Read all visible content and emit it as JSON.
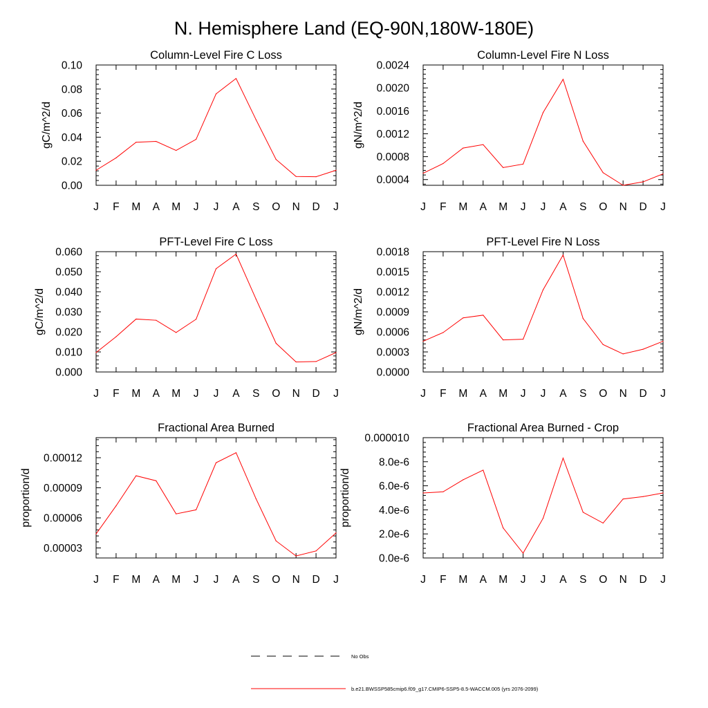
{
  "figure": {
    "title": "N. Hemisphere Land (EQ-90N,180W-180E)",
    "series_color": "#ff0000",
    "axis_color": "#000000"
  },
  "legend": {
    "obs_label": "No Obs",
    "model_label": "b.e21.BWSSP585cmip6.f09_g17.CMIP6-SSP5-8.5-WACCM.005 (yrs 2076-2099)"
  },
  "chart_data": [
    {
      "type": "line",
      "title": "Column-Level Fire C Loss",
      "xlabel": "",
      "ylabel": "gC/m^2/d",
      "categories": [
        "J",
        "F",
        "M",
        "A",
        "M",
        "J",
        "J",
        "A",
        "S",
        "O",
        "N",
        "D",
        "J"
      ],
      "ylim": [
        0,
        0.1
      ],
      "yticks": [
        0,
        0.02,
        0.04,
        0.06,
        0.08,
        0.1
      ],
      "ytick_labels": [
        "0.00",
        "0.02",
        "0.04",
        "0.06",
        "0.08",
        "0.10"
      ],
      "series": [
        {
          "name": "b.e21.BWSSP585cmip6.f09_g17.CMIP6-SSP5-8.5-WACCM.005 (yrs 2076-2099)",
          "values": [
            0.0125,
            0.0228,
            0.0358,
            0.0365,
            0.029,
            0.0382,
            0.076,
            0.0888,
            0.0545,
            0.0215,
            0.0073,
            0.0071,
            0.0125
          ]
        }
      ]
    },
    {
      "type": "line",
      "title": "Column-Level Fire N Loss",
      "xlabel": "",
      "ylabel": "gN/m^2/d",
      "categories": [
        "J",
        "F",
        "M",
        "A",
        "M",
        "J",
        "J",
        "A",
        "S",
        "O",
        "N",
        "D",
        "J"
      ],
      "ylim": [
        0.0003,
        0.0024
      ],
      "yticks": [
        0.0004,
        0.0008,
        0.0012,
        0.0016,
        0.002,
        0.0024
      ],
      "ytick_labels": [
        "0.0004",
        "0.0008",
        "0.0012",
        "0.0016",
        "0.0020",
        "0.0024"
      ],
      "series": [
        {
          "name": "b.e21.BWSSP585cmip6.f09_g17.CMIP6-SSP5-8.5-WACCM.005 (yrs 2076-2099)",
          "values": [
            0.00051,
            0.00068,
            0.00095,
            0.00101,
            0.00061,
            0.00067,
            0.00157,
            0.00215,
            0.00107,
            0.00052,
            0.0003,
            0.00036,
            0.0005
          ]
        }
      ]
    },
    {
      "type": "line",
      "title": "PFT-Level Fire C Loss",
      "xlabel": "",
      "ylabel": "gC/m^2/d",
      "categories": [
        "J",
        "F",
        "M",
        "A",
        "M",
        "J",
        "J",
        "A",
        "S",
        "O",
        "N",
        "D",
        "J"
      ],
      "ylim": [
        0,
        0.06
      ],
      "yticks": [
        0,
        0.01,
        0.02,
        0.03,
        0.04,
        0.05,
        0.06
      ],
      "ytick_labels": [
        "0.000",
        "0.010",
        "0.020",
        "0.030",
        "0.040",
        "0.050",
        "0.060"
      ],
      "series": [
        {
          "name": "b.e21.BWSSP585cmip6.f09_g17.CMIP6-SSP5-8.5-WACCM.005 (yrs 2076-2099)",
          "values": [
            0.0097,
            0.0176,
            0.0264,
            0.0258,
            0.0197,
            0.0263,
            0.0515,
            0.0588,
            0.0363,
            0.0143,
            0.005,
            0.0052,
            0.0097
          ]
        }
      ]
    },
    {
      "type": "line",
      "title": "PFT-Level Fire N Loss",
      "xlabel": "",
      "ylabel": "gN/m^2/d",
      "categories": [
        "J",
        "F",
        "M",
        "A",
        "M",
        "J",
        "J",
        "A",
        "S",
        "O",
        "N",
        "D",
        "J"
      ],
      "ylim": [
        0,
        0.0018
      ],
      "yticks": [
        0,
        0.0003,
        0.0006,
        0.0009,
        0.0012,
        0.0015,
        0.0018
      ],
      "ytick_labels": [
        "0.0000",
        "0.0003",
        "0.0006",
        "0.0009",
        "0.0012",
        "0.0015",
        "0.0018"
      ],
      "series": [
        {
          "name": "b.e21.BWSSP585cmip6.f09_g17.CMIP6-SSP5-8.5-WACCM.005 (yrs 2076-2099)",
          "values": [
            0.00046,
            0.00059,
            0.00081,
            0.00085,
            0.00048,
            0.00049,
            0.00123,
            0.00175,
            0.0008,
            0.00041,
            0.00027,
            0.00034,
            0.00046
          ]
        }
      ]
    },
    {
      "type": "line",
      "title": "Fractional Area Burned",
      "xlabel": "",
      "ylabel": "proportion/d",
      "categories": [
        "J",
        "F",
        "M",
        "A",
        "M",
        "J",
        "J",
        "A",
        "S",
        "O",
        "N",
        "D",
        "J"
      ],
      "ylim": [
        2e-05,
        0.00014
      ],
      "yticks": [
        3e-05,
        6e-05,
        9e-05,
        0.00012
      ],
      "ytick_labels": [
        "0.00003",
        "0.00006",
        "0.00009",
        "0.00012"
      ],
      "series": [
        {
          "name": "b.e21.BWSSP585cmip6.f09_g17.CMIP6-SSP5-8.5-WACCM.005 (yrs 2076-2099)",
          "values": [
            4.4e-05,
            7.2e-05,
            0.000102,
            9.7e-05,
            6.4e-05,
            6.8e-05,
            0.000115,
            0.000125,
            7.9e-05,
            3.7e-05,
            2.2e-05,
            2.7e-05,
            4.5e-05
          ]
        }
      ]
    },
    {
      "type": "line",
      "title": "Fractional Area Burned - Crop",
      "xlabel": "",
      "ylabel": "proportion/d",
      "categories": [
        "J",
        "F",
        "M",
        "A",
        "M",
        "J",
        "J",
        "A",
        "S",
        "O",
        "N",
        "D",
        "J"
      ],
      "ylim": [
        0,
        1e-05
      ],
      "yticks": [
        0,
        2e-06,
        4e-06,
        6e-06,
        8e-06,
        1e-05
      ],
      "ytick_labels": [
        "0.0e-6",
        "2.0e-6",
        "4.0e-6",
        "6.0e-6",
        "8.0e-6",
        "0.000010"
      ],
      "series": [
        {
          "name": "b.e21.BWSSP585cmip6.f09_g17.CMIP6-SSP5-8.5-WACCM.005 (yrs 2076-2099)",
          "values": [
            5.4e-06,
            5.5e-06,
            6.5e-06,
            7.3e-06,
            2.5e-06,
            4e-07,
            3.3e-06,
            8.3e-06,
            3.8e-06,
            2.9e-06,
            4.9e-06,
            5.1e-06,
            5.4e-06
          ]
        }
      ]
    }
  ]
}
